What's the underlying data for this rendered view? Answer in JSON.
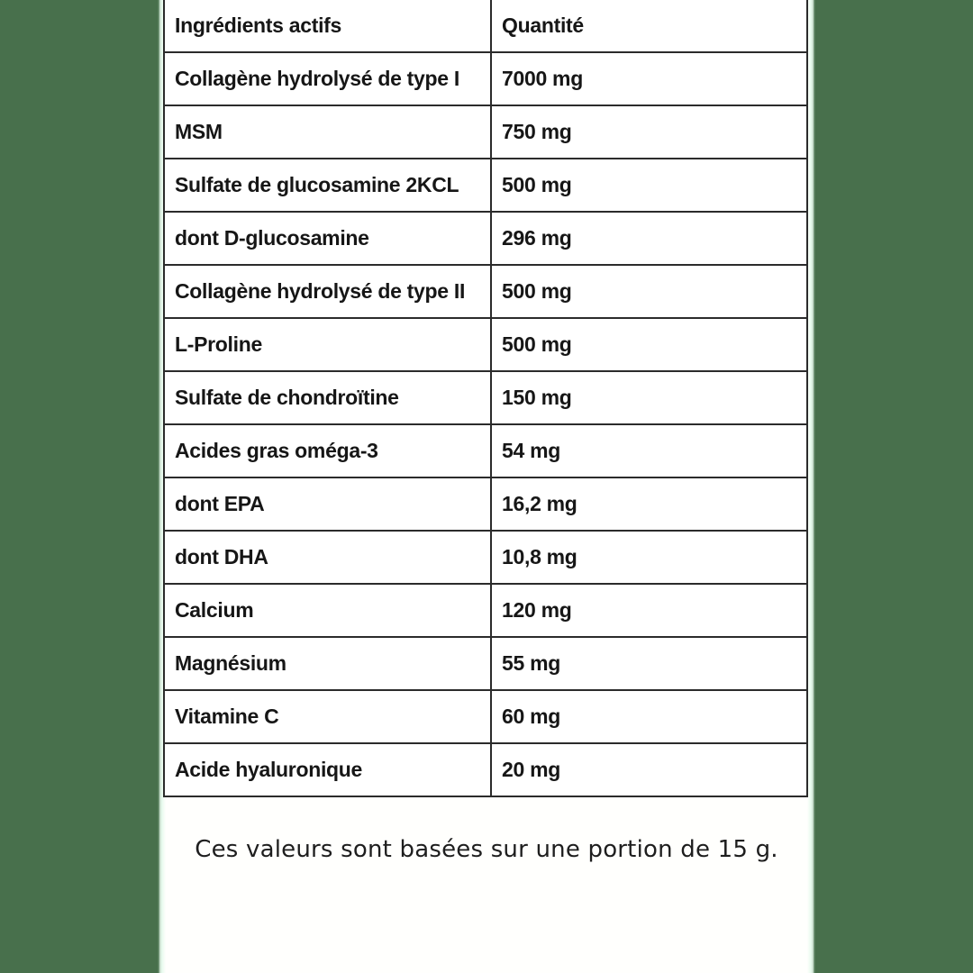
{
  "page": {
    "background_color": "#48704C",
    "panel_color": "#ffffff",
    "border_color": "#2b2b2b",
    "text_color": "#161616"
  },
  "table": {
    "headers": [
      "Ingrédients actifs",
      "Quantité"
    ],
    "rows": [
      {
        "ingredient": "Collagène hydrolysé de type I",
        "quantity": "7000 mg"
      },
      {
        "ingredient": "MSM",
        "quantity": "750 mg"
      },
      {
        "ingredient": "Sulfate de glucosamine 2KCL",
        "quantity": "500 mg"
      },
      {
        "ingredient": "dont D-glucosamine",
        "quantity": "296 mg"
      },
      {
        "ingredient": "Collagène hydrolysé de type II",
        "quantity": "500 mg"
      },
      {
        "ingredient": "L-Proline",
        "quantity": "500 mg"
      },
      {
        "ingredient": "Sulfate de chondroïtine",
        "quantity": "150 mg"
      },
      {
        "ingredient": "Acides gras oméga-3",
        "quantity": "54 mg"
      },
      {
        "ingredient": "dont EPA",
        "quantity": "16,2 mg"
      },
      {
        "ingredient": "dont DHA",
        "quantity": "10,8 mg"
      },
      {
        "ingredient": "Calcium",
        "quantity": "120 mg"
      },
      {
        "ingredient": "Magnésium",
        "quantity": "55 mg"
      },
      {
        "ingredient": "Vitamine C",
        "quantity": "60 mg"
      },
      {
        "ingredient": "Acide hyaluronique",
        "quantity": "20 mg"
      }
    ]
  },
  "footer": {
    "note": "Ces valeurs sont basées sur une portion de 15 g."
  }
}
